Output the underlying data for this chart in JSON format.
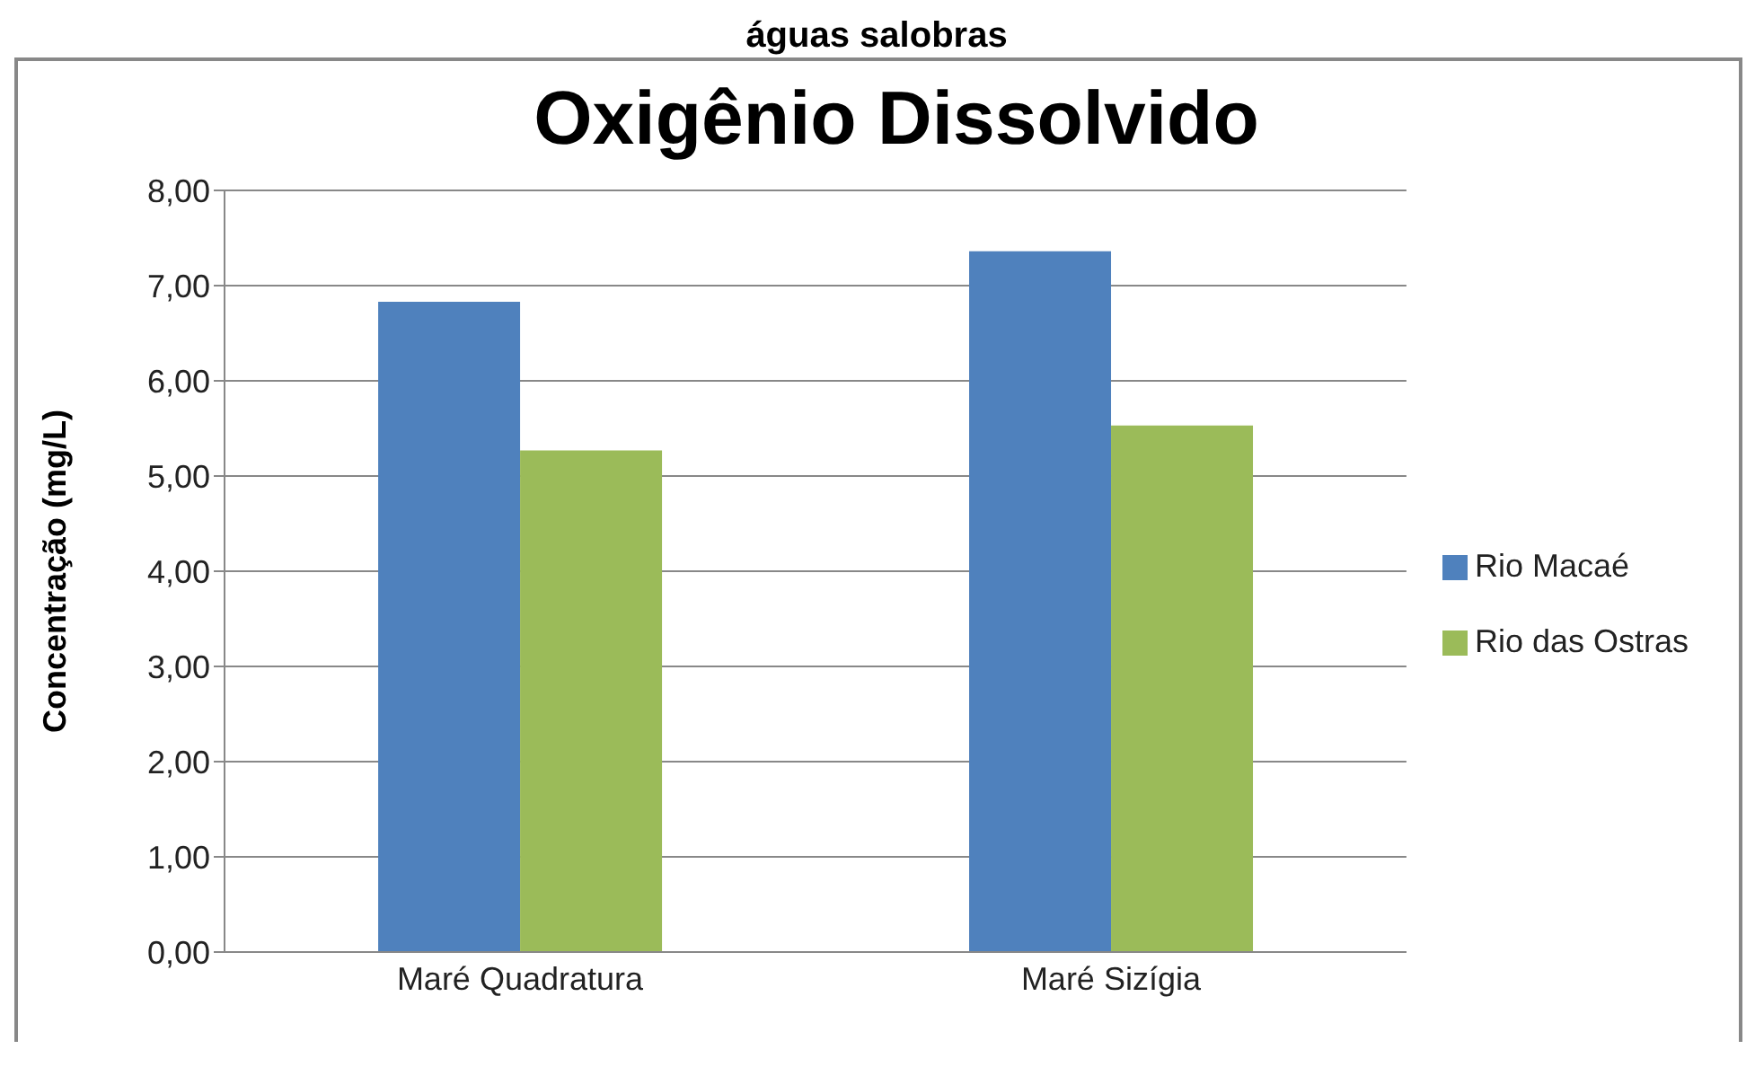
{
  "chart_data": {
    "type": "bar",
    "title": "Oxigênio Dissolvido",
    "ylabel": "Concentração (mg/L)",
    "annotations": [
      "águas salobras"
    ],
    "categories": [
      "Maré Quadratura",
      "Maré Sizígia"
    ],
    "series": [
      {
        "name": "Rio Macaé",
        "color": "#4f81bd",
        "values": [
          6.83,
          7.36
        ]
      },
      {
        "name": "Rio das Ostras",
        "color": "#9bbb59",
        "values": [
          5.27,
          5.53
        ]
      }
    ],
    "ylim": [
      0,
      8
    ],
    "yticks": [
      {
        "value": 0,
        "label": "0,00"
      },
      {
        "value": 1,
        "label": "1,00"
      },
      {
        "value": 2,
        "label": "2,00"
      },
      {
        "value": 3,
        "label": "3,00"
      },
      {
        "value": 4,
        "label": "4,00"
      },
      {
        "value": 5,
        "label": "5,00"
      },
      {
        "value": 6,
        "label": "6,00"
      },
      {
        "value": 7,
        "label": "7,00"
      },
      {
        "value": 8,
        "label": "8,00"
      }
    ],
    "grid": "y",
    "legend": "right"
  }
}
